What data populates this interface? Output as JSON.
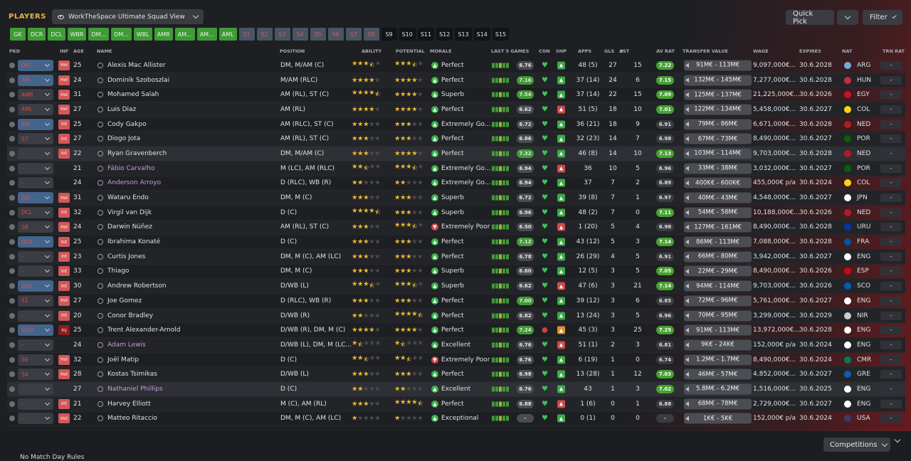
{
  "header": {
    "title": "PLAYERS",
    "view": "WorkTheSpace Ultimate Squad View",
    "quick_pick": "Quick Pick",
    "filter": "Filter"
  },
  "position_filters": [
    {
      "label": "GK",
      "state": "on"
    },
    {
      "label": "DCR",
      "state": "on"
    },
    {
      "label": "DCL",
      "state": "on"
    },
    {
      "label": "WBR",
      "state": "on"
    },
    {
      "label": "DM...",
      "state": "on"
    },
    {
      "label": "DM...",
      "state": "on"
    },
    {
      "label": "WBL",
      "state": "on"
    },
    {
      "label": "AMR",
      "state": "on"
    },
    {
      "label": "AM...",
      "state": "on"
    },
    {
      "label": "AM...",
      "state": "on"
    },
    {
      "label": "AML",
      "state": "on"
    },
    {
      "label": "S1",
      "state": "sub"
    },
    {
      "label": "S2",
      "state": "sub"
    },
    {
      "label": "S3",
      "state": "sub"
    },
    {
      "label": "S4",
      "state": "sub"
    },
    {
      "label": "S5",
      "state": "sub"
    },
    {
      "label": "S6",
      "state": "sub"
    },
    {
      "label": "S7",
      "state": "sub"
    },
    {
      "label": "S8",
      "state": "sub"
    },
    {
      "label": "S9",
      "state": "off"
    },
    {
      "label": "S10",
      "state": "off"
    },
    {
      "label": "S11",
      "state": "off"
    },
    {
      "label": "S12",
      "state": "off"
    },
    {
      "label": "S13",
      "state": "off"
    },
    {
      "label": "S14",
      "state": "off"
    },
    {
      "label": "S15",
      "state": "off"
    }
  ],
  "columns": [
    "PKD",
    "INF",
    "AGE",
    "NAME",
    "POSITION",
    "ABILITY",
    "POTENTIAL",
    "MORALE",
    "LAST 5 GAMES",
    "CON",
    "SHP",
    "APPS",
    "GLS",
    "AST",
    "AV RAT",
    "TRANSFER VALUE",
    "WAGE",
    "EXPIRES",
    "NAT",
    "TRN RAT"
  ],
  "players": [
    {
      "role": "DM...",
      "inf": "Hol",
      "age": "25",
      "name": "Alexis Mac Allister",
      "position": "DM, M/AM (C)",
      "ability": 3.5,
      "potential": 3.5,
      "morale": "Perfect",
      "last5": "6.76",
      "apps": "48 (5)",
      "gls": "27",
      "ast": "15",
      "avrat": "7.22",
      "value": "91M€ - 113M€",
      "wage": "9,097,000€...",
      "expires": "30.6.2028",
      "nat": "ARG",
      "trn": "-"
    },
    {
      "role": "AM...",
      "inf": "Hol",
      "age": "24",
      "name": "Dominik Szoboszlai",
      "position": "M/AM (RLC)",
      "ability": 4,
      "potential": 4,
      "morale": "Perfect",
      "last5": "7.16",
      "apps": "37 (14)",
      "gls": "24",
      "ast": "6",
      "avrat": "7.15",
      "value": "132M€ - 145M€",
      "wage": "7,277,000€...",
      "expires": "30.6.2028",
      "nat": "HUN",
      "trn": "-"
    },
    {
      "role": "AMR",
      "inf": "Hol",
      "age": "31",
      "name": "Mohamed Salah",
      "position": "AM (RL), ST (C)",
      "ability": 4.5,
      "potential": 4,
      "morale": "Superb",
      "last5": "7.54",
      "apps": "37 (14)",
      "gls": "22",
      "ast": "15",
      "avrat": "7.09",
      "value": "125M€ - 137M€",
      "wage": "21,225,000€...",
      "expires": "30.6.2026",
      "nat": "EGY",
      "trn": "-"
    },
    {
      "role": "AML",
      "inf": "Hol",
      "age": "27",
      "name": "Luis Diaz",
      "position": "AM (RL)",
      "ability": 4,
      "potential": 4,
      "morale": "Perfect",
      "last5": "6.62",
      "apps": "51 (5)",
      "gls": "18",
      "ast": "10",
      "avrat": "7.01",
      "value": "122M€ - 134M€",
      "wage": "5,458,000€...",
      "expires": "30.6.2027",
      "nat": "COL",
      "trn": "-"
    },
    {
      "role": "AM...",
      "inf": "Int",
      "age": "25",
      "name": "Cody Gakpo",
      "position": "AM (RLC), ST (C)",
      "ability": 3,
      "potential": 3,
      "morale": "Extremely Go...",
      "last5": "6.72",
      "apps": "36 (21)",
      "gls": "18",
      "ast": "9",
      "avrat": "6.91",
      "value": "79M€ - 86M€",
      "wage": "6,671,000€...",
      "expires": "30.6.2028",
      "nat": "NED",
      "trn": "-"
    },
    {
      "role": "S7",
      "inf": "Int",
      "age": "27",
      "name": "Diogo Jota",
      "position": "AM (RL), ST (C)",
      "ability": 3,
      "potential": 3,
      "morale": "Perfect",
      "last5": "6.86",
      "apps": "32 (23)",
      "gls": "14",
      "ast": "7",
      "avrat": "6.98",
      "value": "67M€ - 73M€",
      "wage": "8,490,000€...",
      "expires": "30.6.2027",
      "nat": "POR",
      "trn": "-"
    },
    {
      "role": "-",
      "inf": "Int",
      "age": "22",
      "name": "Ryan Gravenberch",
      "position": "DM, M/AM (C)",
      "ability": 3,
      "potential": 4,
      "morale": "Perfect",
      "last5": "7.32",
      "apps": "46 (8)",
      "gls": "14",
      "ast": "10",
      "avrat": "7.13",
      "value": "103M€ - 114M€",
      "wage": "9,703,000€...",
      "expires": "30.6.2028",
      "nat": "NED",
      "trn": "-"
    },
    {
      "role": "-",
      "inf": "",
      "age": "21",
      "name": "Fábio Carvalho",
      "position": "M (LC), AM (RLC)",
      "ability": 2.5,
      "potential": 3.5,
      "morale": "Extremely Go...",
      "last5": "6.94",
      "apps": "36",
      "gls": "10",
      "ast": "5",
      "avrat": "6.96",
      "value": "33M€ - 38M€",
      "wage": "3,032,000€...",
      "expires": "30.6.2027",
      "nat": "POR",
      "trn": "-"
    },
    {
      "role": "-",
      "inf": "",
      "age": "24",
      "name": "Anderson Arroyo",
      "position": "D (RLC), WB (R)",
      "ability": 2,
      "potential": 2,
      "morale": "Extremely Go...",
      "last5": "6.94",
      "apps": "37",
      "gls": "7",
      "ast": "2",
      "avrat": "6.89",
      "value": "400K€ - 600K€",
      "wage": "455,000€ p/a",
      "expires": "30.6.2024",
      "nat": "COL",
      "trn": "-"
    },
    {
      "role": "DM...",
      "inf": "Hol",
      "age": "31",
      "name": "Wataru Endo",
      "position": "DM, M (C)",
      "ability": 3,
      "potential": 3,
      "morale": "Superb",
      "last5": "6.72",
      "apps": "39 (8)",
      "gls": "7",
      "ast": "1",
      "avrat": "6.97",
      "value": "40M€ - 43M€",
      "wage": "4,548,000€...",
      "expires": "30.6.2027",
      "nat": "JPN",
      "trn": "-"
    },
    {
      "role": "DCL",
      "inf": "Int",
      "age": "32",
      "name": "Virgil van Dijk",
      "position": "D (C)",
      "ability": 4.5,
      "potential": 3,
      "morale": "Superb",
      "last5": "6.96",
      "apps": "48 (2)",
      "gls": "7",
      "ast": "0",
      "avrat": "7.11",
      "value": "54M€ - 58M€",
      "wage": "10,188,000€...",
      "expires": "30.6.2026",
      "nat": "NED",
      "trn": "-"
    },
    {
      "role": "S8",
      "inf": "Hol",
      "age": "24",
      "name": "Darwin Núñez",
      "position": "AM (RL), ST (C)",
      "ability": 3,
      "potential": 3.5,
      "morale": "Extremely Poor",
      "last5": "6.50",
      "apps": "1 (20)",
      "gls": "5",
      "ast": "4",
      "avrat": "6.98",
      "value": "127M€ - 161M€",
      "wage": "8,490,000€...",
      "expires": "30.6.2028",
      "nat": "URU",
      "trn": "-"
    },
    {
      "role": "DCR",
      "inf": "Int",
      "age": "25",
      "name": "Ibrahima Konaté",
      "position": "D (C)",
      "ability": 3,
      "potential": 3,
      "morale": "Perfect",
      "last5": "7.12",
      "apps": "43 (12)",
      "gls": "5",
      "ast": "3",
      "avrat": "7.14",
      "value": "86M€ - 113M€",
      "wage": "7,088,000€...",
      "expires": "30.6.2028",
      "nat": "FRA",
      "trn": "-"
    },
    {
      "role": "-",
      "inf": "Int",
      "age": "23",
      "name": "Curtis Jones",
      "position": "DM, M (C), AM (LC)",
      "ability": 3,
      "potential": 3,
      "morale": "Perfect",
      "last5": "6.78",
      "apps": "26 (29)",
      "gls": "4",
      "ast": "5",
      "avrat": "6.91",
      "value": "66M€ - 80M€",
      "wage": "3,942,000€...",
      "expires": "30.6.2027",
      "nat": "ENG",
      "trn": "-"
    },
    {
      "role": "-",
      "inf": "Int",
      "age": "33",
      "name": "Thiago",
      "position": "DM, M (C)",
      "ability": 3,
      "potential": 3,
      "morale": "Superb",
      "last5": "6.60",
      "apps": "12 (5)",
      "gls": "3",
      "ast": "5",
      "avrat": "7.05",
      "value": "22M€ - 29M€",
      "wage": "8,490,000€...",
      "expires": "30.6.2026",
      "nat": "ESP",
      "trn": "-"
    },
    {
      "role": "WBL",
      "inf": "Int",
      "age": "30",
      "name": "Andrew Robertson",
      "position": "D/WB (L)",
      "ability": 3.5,
      "potential": 3.5,
      "morale": "Superb",
      "last5": "6.62",
      "apps": "47 (6)",
      "gls": "3",
      "ast": "21",
      "avrat": "7.14",
      "value": "94M€ - 114M€",
      "wage": "9,703,000€...",
      "expires": "30.6.2026",
      "nat": "SCO",
      "trn": "-"
    },
    {
      "role": "S1",
      "inf": "Hol",
      "age": "27",
      "name": "Joe Gomez",
      "position": "D (RLC), WB (R)",
      "ability": 3,
      "potential": 3,
      "morale": "Perfect",
      "last5": "7.00",
      "apps": "39 (12)",
      "gls": "3",
      "ast": "6",
      "avrat": "6.85",
      "value": "72M€ - 96M€",
      "wage": "5,761,000€...",
      "expires": "30.6.2027",
      "nat": "ENG",
      "trn": "-"
    },
    {
      "role": "-",
      "inf": "Int",
      "age": "20",
      "name": "Conor Bradley",
      "position": "D/WB (R)",
      "ability": 2,
      "potential": 4.5,
      "morale": "Perfect",
      "last5": "6.82",
      "apps": "13 (24)",
      "gls": "3",
      "ast": "5",
      "avrat": "6.96",
      "value": "70M€ - 95M€",
      "wage": "3,299,000€...",
      "expires": "30.6.2029",
      "nat": "NIR",
      "trn": "-"
    },
    {
      "role": "WBR",
      "inf": "Inj",
      "age": "25",
      "name": "Trent Alexander-Arnold",
      "position": "D/WB (R), DM, M (C)",
      "ability": 4,
      "potential": 4,
      "morale": "Perfect",
      "last5": "7.24",
      "apps": "45 (3)",
      "gls": "3",
      "ast": "25",
      "avrat": "7.25",
      "value": "91M€ - 113M€",
      "wage": "13,972,000€...",
      "expires": "30.6.2028",
      "nat": "ENG",
      "trn": "-"
    },
    {
      "role": "-",
      "inf": "",
      "age": "24",
      "name": "Adam Lewis",
      "position": "D/WB (L), DM, M (LC...",
      "ability": 1.5,
      "potential": 1.5,
      "morale": "Excellent",
      "last5": "6.76",
      "apps": "51 (1)",
      "gls": "2",
      "ast": "3",
      "avrat": "6.81",
      "value": "9K€ - 24K€",
      "wage": "152,000€ p/a",
      "expires": "30.6.2024",
      "nat": "ENG",
      "trn": "-"
    },
    {
      "role": "S6",
      "inf": "Hol",
      "age": "32",
      "name": "Joël Matip",
      "position": "D (C)",
      "ability": 2.5,
      "potential": 2.5,
      "morale": "Extremely Poor",
      "last5": "6.76",
      "apps": "6 (19)",
      "gls": "1",
      "ast": "0",
      "avrat": "6.74",
      "value": "1.2M€ - 1.7M€",
      "wage": "8,490,000€...",
      "expires": "30.6.2024",
      "nat": "CMR",
      "trn": "-"
    },
    {
      "role": "S4",
      "inf": "Hol",
      "age": "28",
      "name": "Kostas Tsimikas",
      "position": "D/WB (L)",
      "ability": 3,
      "potential": 3,
      "morale": "Perfect",
      "last5": "6.98",
      "apps": "13 (28)",
      "gls": "1",
      "ast": "12",
      "avrat": "7.03",
      "value": "46M€ - 57M€",
      "wage": "4,852,000€...",
      "expires": "30.6.2027",
      "nat": "GRE",
      "trn": "-"
    },
    {
      "role": "-",
      "inf": "",
      "age": "27",
      "name": "Nathaniel Phillips",
      "position": "D (C)",
      "ability": 2,
      "potential": 2,
      "morale": "Excellent",
      "last5": "6.76",
      "apps": "43",
      "gls": "1",
      "ast": "3",
      "avrat": "7.02",
      "value": "5.8M€ - 6.2M€",
      "wage": "1,516,000€...",
      "expires": "30.6.2025",
      "nat": "ENG",
      "trn": "-"
    },
    {
      "role": "-",
      "inf": "Int",
      "age": "21",
      "name": "Harvey Elliott",
      "position": "M (C), AM (RL)",
      "ability": 3,
      "potential": 4.5,
      "morale": "Perfect",
      "last5": "6.88",
      "apps": "1 (6)",
      "gls": "0",
      "ast": "1",
      "avrat": "6.88",
      "value": "68M€ - 78M€",
      "wage": "2,729,000€...",
      "expires": "30.6.2027",
      "nat": "ENG",
      "trn": "-"
    },
    {
      "role": "-",
      "inf": "Hol",
      "age": "22",
      "name": "Matteo Ritaccio",
      "position": "DM, M (C), AM (LC)",
      "ability": 1,
      "potential": 1,
      "morale": "Exceptional",
      "last5": "-",
      "apps": "0 (1)",
      "gls": "0",
      "ast": "0",
      "avrat": "-",
      "value": "1K€ - 5K€",
      "wage": "152,000€ p/a",
      "expires": "30.6.2024",
      "nat": "USA",
      "trn": "-"
    }
  ],
  "footer": {
    "rules": "No Match Day Rules",
    "competitions": "Competitions"
  },
  "colors": {
    "accent": "#e6b347",
    "green": "#3f9b35",
    "red": "#d35757"
  }
}
